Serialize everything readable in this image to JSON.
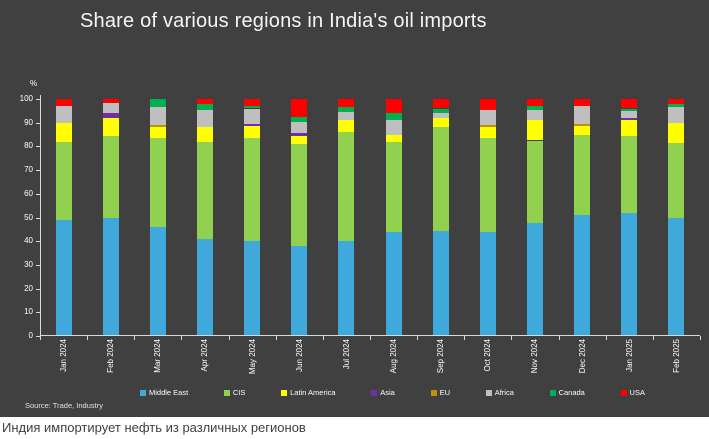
{
  "caption": "Индия импортирует нефть из различных регионов",
  "colors": {
    "panel_background": "#404040",
    "axis": "#d9d9d9",
    "title_text": "#f5f5f5",
    "axis_text": "#ffffff"
  },
  "chart_data": {
    "type": "bar",
    "subtype": "stacked-100",
    "title": "Share of various regions in India's oil imports",
    "unit_label": "%",
    "source": "Source: Trade, Industry",
    "ylim": [
      0,
      100
    ],
    "yticks": [
      0,
      10,
      20,
      30,
      40,
      50,
      60,
      70,
      80,
      90,
      100
    ],
    "grid": false,
    "legend_position": "bottom",
    "categories": [
      "Jan 2024",
      "Feb 2024",
      "Mar 2024",
      "Apr 2024",
      "May 2024",
      "Jun 2024",
      "Jul 2024",
      "Aug 2024",
      "Sep 2024",
      "Oct 2024",
      "Nov 2024",
      "Dec 2024",
      "Jan 2025",
      "Feb 2025"
    ],
    "series": [
      {
        "name": "Middle East",
        "color": "#3FA9DC",
        "values": [
          49,
          50,
          46,
          41,
          40,
          38,
          40,
          44,
          44.5,
          44,
          47.5,
          51,
          52,
          50
        ]
      },
      {
        "name": "CIS",
        "color": "#92D050",
        "values": [
          33,
          34.5,
          37.5,
          41,
          43.5,
          43,
          46,
          38,
          43.5,
          39.5,
          35,
          34,
          32.5,
          31.5
        ]
      },
      {
        "name": "Latin America",
        "color": "#FFFF00",
        "values": [
          8,
          7.5,
          4.5,
          6,
          5,
          3.5,
          5,
          3,
          4,
          4.5,
          8.5,
          3.5,
          6.5,
          8.5
        ]
      },
      {
        "name": "Asia",
        "color": "#7030A0",
        "values": [
          0,
          2,
          0,
          0,
          1,
          1,
          0,
          0,
          0,
          0,
          0,
          0,
          1,
          0
        ]
      },
      {
        "name": "EU",
        "color": "#BF9000",
        "values": [
          0,
          0,
          1,
          0,
          0,
          0,
          0,
          0,
          0,
          1,
          0,
          1,
          0,
          0
        ]
      },
      {
        "name": "Africa",
        "color": "#BFBFBF",
        "values": [
          7,
          4.5,
          7.5,
          7.5,
          6.5,
          5,
          3.5,
          6,
          2,
          6.5,
          4.5,
          7.5,
          3,
          6.5
        ]
      },
      {
        "name": "Canada",
        "color": "#00B050",
        "values": [
          0,
          0,
          3.5,
          2.5,
          1,
          2,
          2,
          3,
          2,
          0,
          1.5,
          0,
          1,
          1.5
        ]
      },
      {
        "name": "USA",
        "color": "#FF0000",
        "values": [
          3,
          1.5,
          0,
          2,
          3,
          7.5,
          3.5,
          6,
          4,
          4.5,
          3,
          3,
          4,
          2
        ]
      }
    ]
  }
}
